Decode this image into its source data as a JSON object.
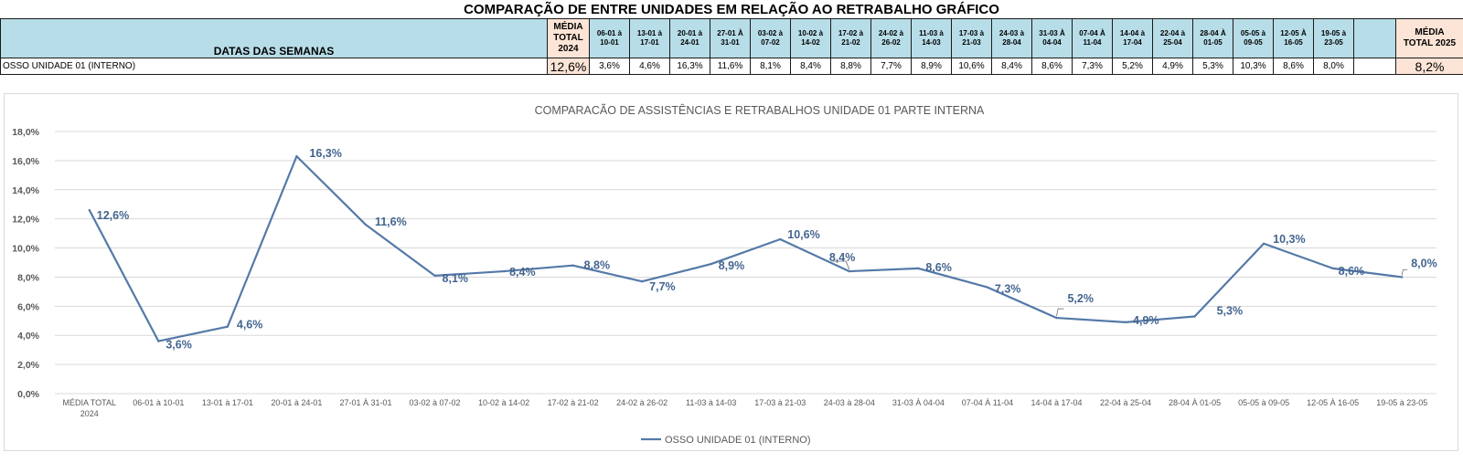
{
  "sheet": {
    "title": "COMPARAÇÃO DE ENTRE UNIDADES EM RELAÇÃO AO RETRABALHO GRÁFICO",
    "header_label": "DATAS DAS SEMANAS",
    "avg_2024_label": [
      "MÉDIA",
      "TOTAL",
      "2024"
    ],
    "avg_2025_label": [
      "MÉDIA",
      "TOTAL 2025"
    ],
    "week_headers": [
      [
        "06-01 à",
        "10-01"
      ],
      [
        "13-01 à",
        "17-01"
      ],
      [
        "20-01 à",
        "24-01"
      ],
      [
        "27-01 À",
        "31-01"
      ],
      [
        "03-02 à",
        "07-02"
      ],
      [
        "10-02 à",
        "14-02"
      ],
      [
        "17-02 à",
        "21-02"
      ],
      [
        "24-02 à",
        "26-02"
      ],
      [
        "11-03 à",
        "14-03"
      ],
      [
        "17-03 à",
        "21-03"
      ],
      [
        "24-03 à",
        "28-04"
      ],
      [
        "31-03 À",
        "04-04"
      ],
      [
        "07-04 À",
        "11-04"
      ],
      [
        "14-04 à",
        "17-04"
      ],
      [
        "22-04 à",
        "25-04"
      ],
      [
        "28-04 À",
        "01-05"
      ],
      [
        "05-05 à",
        "09-05"
      ],
      [
        "12-05 À",
        "16-05"
      ],
      [
        "19-05 à",
        "23-05"
      ]
    ],
    "row_label": "OSSO UNIDADE 01 (INTERNO)",
    "avg_2024_value": "12,6%",
    "week_values": [
      "3,6%",
      "4,6%",
      "16,3%",
      "11,6%",
      "8,1%",
      "8,4%",
      "8,8%",
      "7,7%",
      "8,9%",
      "10,6%",
      "8,4%",
      "8,6%",
      "7,3%",
      "5,2%",
      "4,9%",
      "5,3%",
      "10,3%",
      "8,6%",
      "8,0%"
    ],
    "avg_2025_value": "8,2%"
  },
  "chart_data": {
    "type": "line",
    "title": "COMPARACÃO DE ASSISTÊNCIAS E RETRABALHOS UNIDADE 01 PARTE INTERNA",
    "categories": [
      [
        "MÉDIA TOTAL",
        "2024"
      ],
      [
        "06-01 à 10-01"
      ],
      [
        "13-01 à 17-01"
      ],
      [
        "20-01 à 24-01"
      ],
      [
        "27-01 À 31-01"
      ],
      [
        "03-02 à 07-02"
      ],
      [
        "10-02 à 14-02"
      ],
      [
        "17-02 à 21-02"
      ],
      [
        "24-02 à 26-02"
      ],
      [
        "11-03 à 14-03"
      ],
      [
        "17-03 à 21-03"
      ],
      [
        "24-03 à 28-04"
      ],
      [
        "31-03 À 04-04"
      ],
      [
        "07-04 À 11-04"
      ],
      [
        "14-04 à 17-04"
      ],
      [
        "22-04 à 25-04"
      ],
      [
        "28-04 À 01-05"
      ],
      [
        "05-05 à 09-05"
      ],
      [
        "12-05 À 16-05"
      ],
      [
        "19-05 à 23-05"
      ]
    ],
    "series": [
      {
        "name": "OSSO UNIDADE 01 (INTERNO)",
        "color": "#5479a8",
        "values": [
          12.6,
          3.6,
          4.6,
          16.3,
          11.6,
          8.1,
          8.4,
          8.8,
          7.7,
          8.9,
          10.6,
          8.4,
          8.6,
          7.3,
          5.2,
          4.9,
          5.3,
          10.3,
          8.6,
          8.0
        ],
        "labels": [
          "12,6%",
          "3,6%",
          "4,6%",
          "16,3%",
          "11,6%",
          "8,1%",
          "8,4%",
          "8,8%",
          "7,7%",
          "8,9%",
          "10,6%",
          "8,4%",
          "8,6%",
          "7,3%",
          "5,2%",
          "4,9%",
          "5,3%",
          "10,3%",
          "8,6%",
          "8,0%"
        ]
      }
    ],
    "yticks": [
      "0,0%",
      "2,0%",
      "4,0%",
      "6,0%",
      "8,0%",
      "10,0%",
      "12,0%",
      "14,0%",
      "16,0%",
      "18,0%"
    ],
    "ylim": [
      0,
      18
    ],
    "grid": true,
    "legend_position": "bottom",
    "colors": {
      "axis_text": "#595959",
      "grid": "#d9d9d9",
      "title": "#595959",
      "label": "#44658f"
    }
  }
}
